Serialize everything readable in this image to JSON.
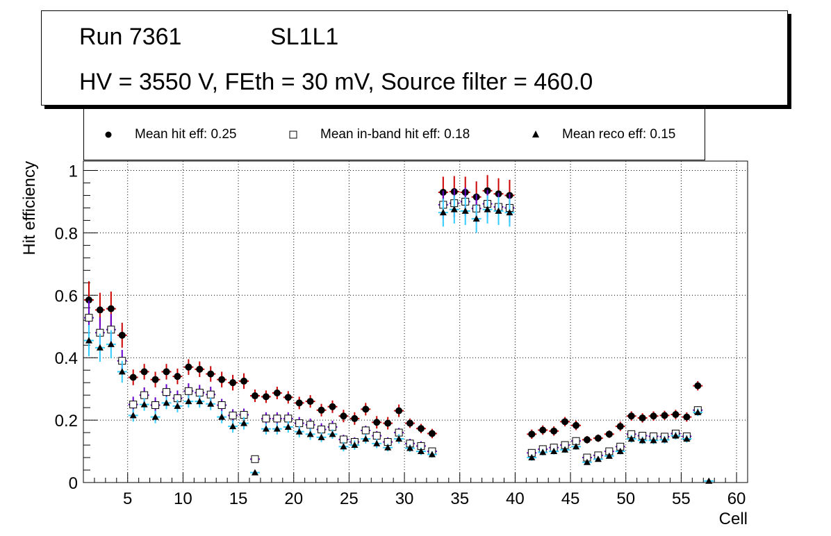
{
  "header": {
    "run": "Run 7361",
    "layer": "SL1L1",
    "settings": "HV = 3550 V, FEth = 30 mV, Source filter = 460.0"
  },
  "legend": {
    "hit": "Mean hit  eff: 0.25",
    "inband": "Mean in-band hit eff: 0.18",
    "reco": "Mean reco eff: 0.15"
  },
  "colors": {
    "hit_error": "#cc0000",
    "inband_error": "#6600cc",
    "reco_error": "#33ccff",
    "marker": "#000000"
  },
  "chart_data": {
    "type": "scatter",
    "xlabel": "Cell",
    "ylabel": "Hit efficiency",
    "xlim": [
      1,
      61
    ],
    "ylim": [
      0,
      1.03
    ],
    "grid": true,
    "x_ticks": [
      5,
      10,
      15,
      20,
      25,
      30,
      35,
      40,
      45,
      50,
      55,
      60
    ],
    "y_ticks": [
      0,
      0.2,
      0.4,
      0.6,
      0.8,
      1
    ],
    "y_tick_labels": [
      "0",
      "0.2",
      "0.4",
      "0.6",
      "0.8",
      "1"
    ],
    "x_tick_labels": [
      "5",
      "10",
      "15",
      "20",
      "25",
      "30",
      "35",
      "40",
      "45",
      "50",
      "55",
      "60"
    ],
    "series": [
      {
        "name": "Mean hit  eff: 0.25",
        "marker": "circle",
        "points": [
          {
            "x": 1.5,
            "y": 0.585,
            "err": 0.06
          },
          {
            "x": 2.5,
            "y": 0.553,
            "err": 0.055
          },
          {
            "x": 3.5,
            "y": 0.557,
            "err": 0.055
          },
          {
            "x": 4.5,
            "y": 0.472,
            "err": 0.04
          },
          {
            "x": 5.5,
            "y": 0.337,
            "err": 0.025
          },
          {
            "x": 6.5,
            "y": 0.355,
            "err": 0.025
          },
          {
            "x": 7.5,
            "y": 0.33,
            "err": 0.025
          },
          {
            "x": 8.5,
            "y": 0.355,
            "err": 0.025
          },
          {
            "x": 9.5,
            "y": 0.34,
            "err": 0.025
          },
          {
            "x": 10.5,
            "y": 0.37,
            "err": 0.025
          },
          {
            "x": 11.5,
            "y": 0.363,
            "err": 0.025
          },
          {
            "x": 12.5,
            "y": 0.348,
            "err": 0.025
          },
          {
            "x": 13.5,
            "y": 0.33,
            "err": 0.025
          },
          {
            "x": 14.5,
            "y": 0.32,
            "err": 0.025
          },
          {
            "x": 15.5,
            "y": 0.325,
            "err": 0.025
          },
          {
            "x": 16.5,
            "y": 0.278,
            "err": 0.02
          },
          {
            "x": 17.5,
            "y": 0.275,
            "err": 0.02
          },
          {
            "x": 18.5,
            "y": 0.287,
            "err": 0.02
          },
          {
            "x": 19.5,
            "y": 0.273,
            "err": 0.02
          },
          {
            "x": 20.5,
            "y": 0.255,
            "err": 0.02
          },
          {
            "x": 21.5,
            "y": 0.26,
            "err": 0.02
          },
          {
            "x": 22.5,
            "y": 0.232,
            "err": 0.02
          },
          {
            "x": 23.5,
            "y": 0.243,
            "err": 0.02
          },
          {
            "x": 24.5,
            "y": 0.213,
            "err": 0.02
          },
          {
            "x": 25.5,
            "y": 0.205,
            "err": 0.02
          },
          {
            "x": 26.5,
            "y": 0.235,
            "err": 0.02
          },
          {
            "x": 27.5,
            "y": 0.193,
            "err": 0.02
          },
          {
            "x": 28.5,
            "y": 0.19,
            "err": 0.02
          },
          {
            "x": 29.5,
            "y": 0.23,
            "err": 0.02
          },
          {
            "x": 30.5,
            "y": 0.19,
            "err": 0.015
          },
          {
            "x": 31.5,
            "y": 0.173,
            "err": 0.015
          },
          {
            "x": 32.5,
            "y": 0.157,
            "err": 0.015
          },
          {
            "x": 33.5,
            "y": 0.93,
            "err": 0.05
          },
          {
            "x": 34.5,
            "y": 0.932,
            "err": 0.05
          },
          {
            "x": 35.5,
            "y": 0.93,
            "err": 0.05
          },
          {
            "x": 36.5,
            "y": 0.915,
            "err": 0.05
          },
          {
            "x": 37.5,
            "y": 0.935,
            "err": 0.05
          },
          {
            "x": 38.5,
            "y": 0.925,
            "err": 0.05
          },
          {
            "x": 39.5,
            "y": 0.92,
            "err": 0.05
          },
          {
            "x": 41.5,
            "y": 0.155,
            "err": 0.015
          },
          {
            "x": 42.5,
            "y": 0.168,
            "err": 0.015
          },
          {
            "x": 43.5,
            "y": 0.165,
            "err": 0.015
          },
          {
            "x": 44.5,
            "y": 0.195,
            "err": 0.015
          },
          {
            "x": 45.5,
            "y": 0.183,
            "err": 0.015
          },
          {
            "x": 46.5,
            "y": 0.137,
            "err": 0.012
          },
          {
            "x": 47.5,
            "y": 0.142,
            "err": 0.012
          },
          {
            "x": 48.5,
            "y": 0.155,
            "err": 0.012
          },
          {
            "x": 49.5,
            "y": 0.18,
            "err": 0.015
          },
          {
            "x": 50.5,
            "y": 0.213,
            "err": 0.015
          },
          {
            "x": 51.5,
            "y": 0.207,
            "err": 0.015
          },
          {
            "x": 52.5,
            "y": 0.213,
            "err": 0.015
          },
          {
            "x": 53.5,
            "y": 0.215,
            "err": 0.015
          },
          {
            "x": 54.5,
            "y": 0.218,
            "err": 0.015
          },
          {
            "x": 55.5,
            "y": 0.21,
            "err": 0.015
          },
          {
            "x": 56.5,
            "y": 0.31,
            "err": 0.015
          }
        ]
      },
      {
        "name": "Mean in-band hit eff: 0.18",
        "marker": "open-square",
        "points": [
          {
            "x": 1.5,
            "y": 0.528,
            "err": 0.055
          },
          {
            "x": 2.5,
            "y": 0.48,
            "err": 0.05
          },
          {
            "x": 3.5,
            "y": 0.49,
            "err": 0.05
          },
          {
            "x": 4.5,
            "y": 0.39,
            "err": 0.035
          },
          {
            "x": 5.5,
            "y": 0.25,
            "err": 0.025
          },
          {
            "x": 6.5,
            "y": 0.28,
            "err": 0.025
          },
          {
            "x": 7.5,
            "y": 0.248,
            "err": 0.025
          },
          {
            "x": 8.5,
            "y": 0.29,
            "err": 0.025
          },
          {
            "x": 9.5,
            "y": 0.27,
            "err": 0.025
          },
          {
            "x": 10.5,
            "y": 0.293,
            "err": 0.025
          },
          {
            "x": 11.5,
            "y": 0.288,
            "err": 0.025
          },
          {
            "x": 12.5,
            "y": 0.282,
            "err": 0.025
          },
          {
            "x": 13.5,
            "y": 0.248,
            "err": 0.02
          },
          {
            "x": 14.5,
            "y": 0.215,
            "err": 0.02
          },
          {
            "x": 15.5,
            "y": 0.217,
            "err": 0.02
          },
          {
            "x": 16.5,
            "y": 0.075,
            "err": 0.01
          },
          {
            "x": 17.5,
            "y": 0.205,
            "err": 0.02
          },
          {
            "x": 18.5,
            "y": 0.205,
            "err": 0.02
          },
          {
            "x": 19.5,
            "y": 0.205,
            "err": 0.02
          },
          {
            "x": 20.5,
            "y": 0.19,
            "err": 0.02
          },
          {
            "x": 21.5,
            "y": 0.185,
            "err": 0.02
          },
          {
            "x": 22.5,
            "y": 0.17,
            "err": 0.02
          },
          {
            "x": 23.5,
            "y": 0.178,
            "err": 0.02
          },
          {
            "x": 24.5,
            "y": 0.138,
            "err": 0.015
          },
          {
            "x": 25.5,
            "y": 0.13,
            "err": 0.015
          },
          {
            "x": 26.5,
            "y": 0.167,
            "err": 0.015
          },
          {
            "x": 27.5,
            "y": 0.15,
            "err": 0.015
          },
          {
            "x": 28.5,
            "y": 0.13,
            "err": 0.015
          },
          {
            "x": 29.5,
            "y": 0.16,
            "err": 0.015
          },
          {
            "x": 30.5,
            "y": 0.125,
            "err": 0.015
          },
          {
            "x": 31.5,
            "y": 0.117,
            "err": 0.015
          },
          {
            "x": 32.5,
            "y": 0.1,
            "err": 0.012
          },
          {
            "x": 33.5,
            "y": 0.89,
            "err": 0.045
          },
          {
            "x": 34.5,
            "y": 0.895,
            "err": 0.045
          },
          {
            "x": 35.5,
            "y": 0.9,
            "err": 0.045
          },
          {
            "x": 36.5,
            "y": 0.878,
            "err": 0.045
          },
          {
            "x": 37.5,
            "y": 0.893,
            "err": 0.045
          },
          {
            "x": 38.5,
            "y": 0.883,
            "err": 0.045
          },
          {
            "x": 39.5,
            "y": 0.88,
            "err": 0.045
          },
          {
            "x": 41.5,
            "y": 0.095,
            "err": 0.012
          },
          {
            "x": 42.5,
            "y": 0.107,
            "err": 0.012
          },
          {
            "x": 43.5,
            "y": 0.112,
            "err": 0.012
          },
          {
            "x": 44.5,
            "y": 0.12,
            "err": 0.012
          },
          {
            "x": 45.5,
            "y": 0.133,
            "err": 0.012
          },
          {
            "x": 46.5,
            "y": 0.08,
            "err": 0.01
          },
          {
            "x": 47.5,
            "y": 0.087,
            "err": 0.01
          },
          {
            "x": 48.5,
            "y": 0.1,
            "err": 0.01
          },
          {
            "x": 49.5,
            "y": 0.115,
            "err": 0.012
          },
          {
            "x": 50.5,
            "y": 0.155,
            "err": 0.012
          },
          {
            "x": 51.5,
            "y": 0.15,
            "err": 0.012
          },
          {
            "x": 52.5,
            "y": 0.148,
            "err": 0.012
          },
          {
            "x": 53.5,
            "y": 0.147,
            "err": 0.012
          },
          {
            "x": 54.5,
            "y": 0.157,
            "err": 0.012
          },
          {
            "x": 55.5,
            "y": 0.148,
            "err": 0.012
          },
          {
            "x": 56.5,
            "y": 0.232,
            "err": 0.012
          }
        ]
      },
      {
        "name": "Mean reco eff: 0.15",
        "marker": "triangle",
        "points": [
          {
            "x": 1.5,
            "y": 0.455,
            "err": 0.05
          },
          {
            "x": 2.5,
            "y": 0.432,
            "err": 0.045
          },
          {
            "x": 3.5,
            "y": 0.443,
            "err": 0.045
          },
          {
            "x": 4.5,
            "y": 0.355,
            "err": 0.035
          },
          {
            "x": 5.5,
            "y": 0.215,
            "err": 0.02
          },
          {
            "x": 6.5,
            "y": 0.25,
            "err": 0.02
          },
          {
            "x": 7.5,
            "y": 0.21,
            "err": 0.02
          },
          {
            "x": 8.5,
            "y": 0.255,
            "err": 0.02
          },
          {
            "x": 9.5,
            "y": 0.245,
            "err": 0.02
          },
          {
            "x": 10.5,
            "y": 0.26,
            "err": 0.02
          },
          {
            "x": 11.5,
            "y": 0.26,
            "err": 0.02
          },
          {
            "x": 12.5,
            "y": 0.252,
            "err": 0.02
          },
          {
            "x": 13.5,
            "y": 0.21,
            "err": 0.02
          },
          {
            "x": 14.5,
            "y": 0.18,
            "err": 0.02
          },
          {
            "x": 15.5,
            "y": 0.19,
            "err": 0.02
          },
          {
            "x": 16.5,
            "y": 0.032,
            "err": 0.007
          },
          {
            "x": 17.5,
            "y": 0.172,
            "err": 0.018
          },
          {
            "x": 18.5,
            "y": 0.172,
            "err": 0.018
          },
          {
            "x": 19.5,
            "y": 0.178,
            "err": 0.018
          },
          {
            "x": 20.5,
            "y": 0.163,
            "err": 0.018
          },
          {
            "x": 21.5,
            "y": 0.155,
            "err": 0.018
          },
          {
            "x": 22.5,
            "y": 0.145,
            "err": 0.015
          },
          {
            "x": 23.5,
            "y": 0.155,
            "err": 0.015
          },
          {
            "x": 24.5,
            "y": 0.115,
            "err": 0.015
          },
          {
            "x": 25.5,
            "y": 0.12,
            "err": 0.015
          },
          {
            "x": 26.5,
            "y": 0.14,
            "err": 0.015
          },
          {
            "x": 27.5,
            "y": 0.125,
            "err": 0.015
          },
          {
            "x": 28.5,
            "y": 0.112,
            "err": 0.012
          },
          {
            "x": 29.5,
            "y": 0.14,
            "err": 0.015
          },
          {
            "x": 30.5,
            "y": 0.11,
            "err": 0.012
          },
          {
            "x": 31.5,
            "y": 0.1,
            "err": 0.012
          },
          {
            "x": 32.5,
            "y": 0.09,
            "err": 0.01
          },
          {
            "x": 33.5,
            "y": 0.865,
            "err": 0.045
          },
          {
            "x": 34.5,
            "y": 0.875,
            "err": 0.045
          },
          {
            "x": 35.5,
            "y": 0.87,
            "err": 0.045
          },
          {
            "x": 36.5,
            "y": 0.845,
            "err": 0.045
          },
          {
            "x": 37.5,
            "y": 0.875,
            "err": 0.045
          },
          {
            "x": 38.5,
            "y": 0.87,
            "err": 0.045
          },
          {
            "x": 39.5,
            "y": 0.865,
            "err": 0.045
          },
          {
            "x": 41.5,
            "y": 0.08,
            "err": 0.01
          },
          {
            "x": 42.5,
            "y": 0.097,
            "err": 0.01
          },
          {
            "x": 43.5,
            "y": 0.1,
            "err": 0.01
          },
          {
            "x": 44.5,
            "y": 0.105,
            "err": 0.01
          },
          {
            "x": 45.5,
            "y": 0.115,
            "err": 0.01
          },
          {
            "x": 46.5,
            "y": 0.065,
            "err": 0.008
          },
          {
            "x": 47.5,
            "y": 0.075,
            "err": 0.008
          },
          {
            "x": 48.5,
            "y": 0.085,
            "err": 0.008
          },
          {
            "x": 49.5,
            "y": 0.1,
            "err": 0.01
          },
          {
            "x": 50.5,
            "y": 0.14,
            "err": 0.012
          },
          {
            "x": 51.5,
            "y": 0.135,
            "err": 0.012
          },
          {
            "x": 52.5,
            "y": 0.135,
            "err": 0.012
          },
          {
            "x": 53.5,
            "y": 0.137,
            "err": 0.012
          },
          {
            "x": 54.5,
            "y": 0.15,
            "err": 0.012
          },
          {
            "x": 55.5,
            "y": 0.14,
            "err": 0.012
          },
          {
            "x": 56.5,
            "y": 0.225,
            "err": 0.012
          },
          {
            "x": 57.5,
            "y": 0.005,
            "err": 0.003
          }
        ]
      }
    ]
  }
}
